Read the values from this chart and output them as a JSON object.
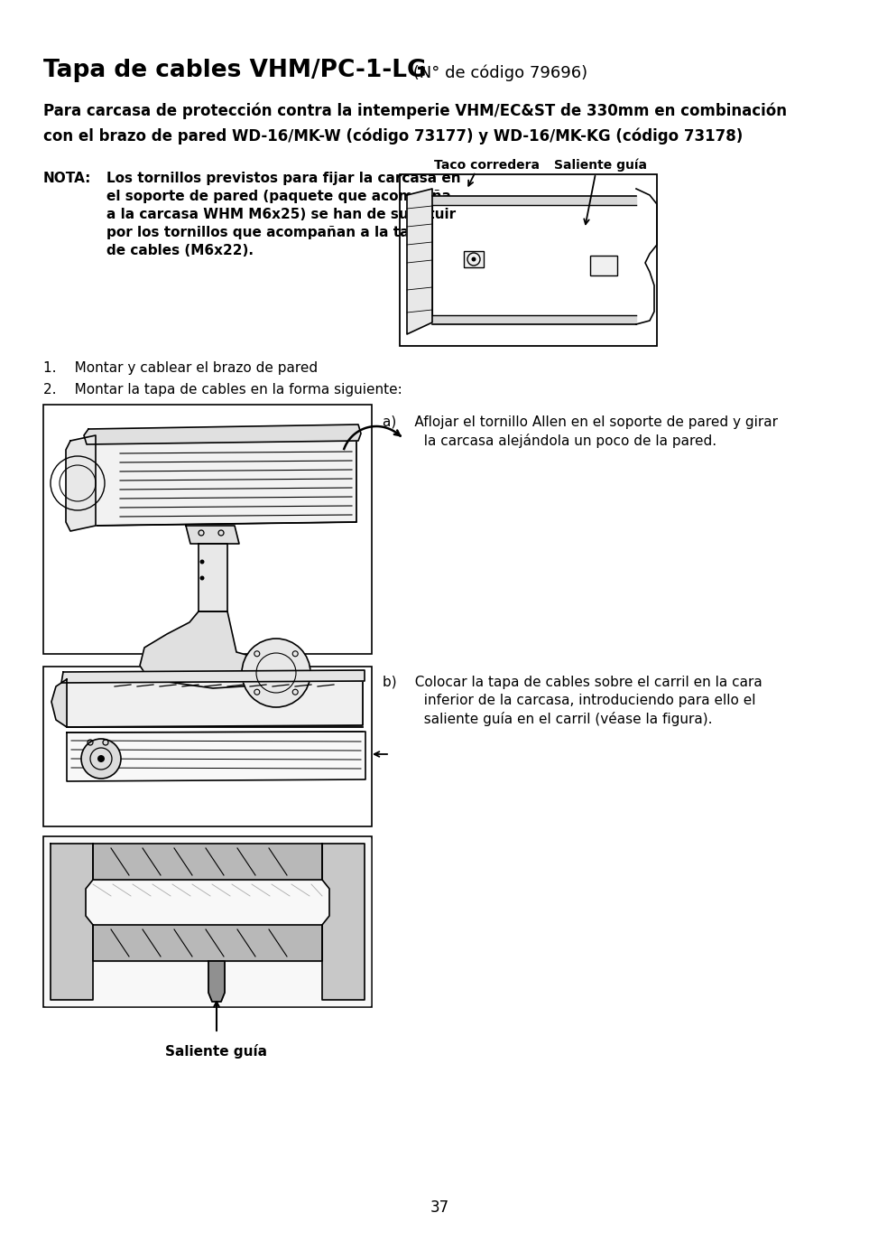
{
  "title_bold": "Tapa de cables VHM/PC-1-LG",
  "title_normal": " (N° de código 79696)",
  "subtitle_line1": "Para carcasa de protección contra la intemperie VHM/EC&ST de 330mm en combinación",
  "subtitle_line2": "con el brazo de pared WD-16/MK-W (código 73177) y WD-16/MK-KG (código 73178)",
  "nota_label": "NOTA:",
  "nota_text_line1": "Los tornillos previstos para fijar la carcasa en",
  "nota_text_line2": "el soporte de pared (paquete que acompaña",
  "nota_text_line3": "a la carcasa WHM M6x25) se han de sustituir",
  "nota_text_line4": "por los tornillos que acompañan a la tapa",
  "nota_text_line5": "de cables (M6x22).",
  "list_item1": "1.  Montar y cablear el brazo de pared",
  "list_item2": "2.  Montar la tapa de cables en la forma siguiente:",
  "step_a_line1": "a)  Aflojar el tornillo Allen en el soporte de pared y girar",
  "step_a_line2": "   la carcasa alejándola un poco de la pared.",
  "step_b_line1": "b)  Colocar la tapa de cables sobre el carril en la cara",
  "step_b_line2": "   inferior de la carcasa, introduciendo para ello el",
  "step_b_line3": "   saliente guía en el carril (véase la figura).",
  "label_taco": "Taco corredera",
  "label_saliente_top": "Saliente guía",
  "label_saliente_bottom": "Saliente guía",
  "page_number": "37",
  "bg_color": "#ffffff",
  "text_color": "#000000"
}
